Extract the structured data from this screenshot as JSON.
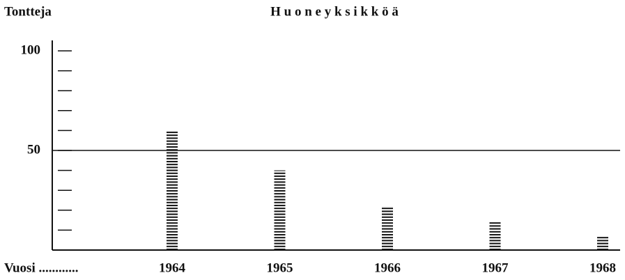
{
  "chart_data": {
    "type": "bar",
    "title": "H u o n e y k s i k k ö ä",
    "y_label": "Tontteja",
    "x_label": "Vuosi ............",
    "categories": [
      "1964",
      "1965",
      "1966",
      "1967",
      "1968"
    ],
    "values": [
      60,
      40,
      22,
      14,
      7
    ],
    "color": "#111111",
    "ylim": [
      0,
      100
    ],
    "yticks": [
      50,
      100
    ],
    "y_minor_ticks": [
      10,
      20,
      30,
      40,
      60,
      70,
      80,
      90
    ],
    "reference_line": 50
  }
}
